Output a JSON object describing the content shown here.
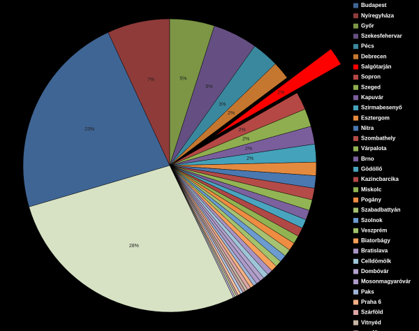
{
  "chart_data": {
    "type": "pie",
    "categories": [
      "Budapest",
      "Nyíregyháza",
      "Győr",
      "Szekesfehervar",
      "Pécs",
      "Debrecen",
      "Salgótarján",
      "Sopron",
      "Szeged",
      "Kapuvár",
      "Szirmabesenyő",
      "Esztergom",
      "Nitra",
      "Szombathely",
      "Várpalota",
      "Brno",
      "Gödöllő",
      "Kazincbarcika",
      "Miskolc",
      "Pogány",
      "Szabadbattyán",
      "Szolnok",
      "Veszprém",
      "Biatorbágy",
      "Bratislava",
      "Celldömölk",
      "Dombóvár",
      "Mosonmagyaróvár",
      "Paks",
      "Praha 6",
      "Szárföld",
      "Vitnyéd",
      "egy fős",
      null,
      null,
      null,
      null,
      null,
      null
    ],
    "values": [
      23,
      7,
      5,
      5,
      3,
      2,
      2,
      2,
      2,
      2,
      2,
      1.5,
      1.4,
      1.3,
      1.2,
      1.1,
      1.0,
      1.0,
      0.9,
      0.9,
      0.8,
      0.8,
      0.7,
      0.7,
      0.6,
      0.6,
      0.5,
      0.5,
      0.4,
      0.4,
      0.4,
      0.3,
      0.3,
      0.3,
      0.3,
      0.2,
      0.2,
      0.2,
      28
    ],
    "value_labels": [
      "23%",
      "7%",
      "5%",
      "5%",
      "3%",
      "2%",
      "2%",
      "2%",
      "2%",
      "2%",
      "2%",
      null,
      null,
      null,
      null,
      null,
      null,
      null,
      null,
      null,
      null,
      null,
      null,
      null,
      null,
      null,
      null,
      null,
      null,
      null,
      null,
      null,
      null,
      null,
      null,
      null,
      null,
      null,
      "28%"
    ],
    "colors": [
      "#3f6594",
      "#8f3b3a",
      "#7c9645",
      "#654f82",
      "#3a889e",
      "#c5772f",
      "#ff0000",
      "#b54745",
      "#8fae4f",
      "#7a5e9c",
      "#44a2bb",
      "#e48a3f",
      "#4a78b0",
      "#b54b48",
      "#93b454",
      "#7b619e",
      "#49a5bf",
      "#b04846",
      "#91b351",
      "#ee8c42",
      "#a6c171",
      "#6b9bd1",
      "#a3c26c",
      "#f7a05a",
      "#a894c4",
      "#9fc5d8",
      "#b2a2cc",
      "#ad9ac8",
      "#9fb4d8",
      "#f4b183",
      "#dba6a5",
      "#c8b7a6",
      "#c0a1a0",
      "#b7c8e6",
      "#f5c09e",
      "#c9a7a6",
      "#c6d6a4",
      "#b8acd0",
      "#d7e2c4"
    ],
    "exploded": [
      "Salgótarján"
    ]
  }
}
